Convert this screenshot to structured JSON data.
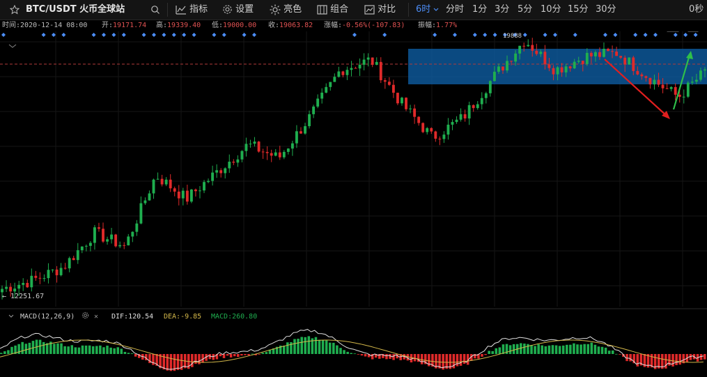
{
  "toolbar": {
    "pair": "BTC/USDT 火币全球站",
    "indicators_label": "指标",
    "settings_label": "设置",
    "theme_label": "亮色",
    "combo_label": "组合",
    "compare_label": "对比",
    "active_interval": "6时",
    "intervals": [
      "分时",
      "1分",
      "3分",
      "5分",
      "10分",
      "15分",
      "30分"
    ],
    "countdown": "0秒"
  },
  "info": {
    "time_label": "时间:",
    "time_value": "2020-12-14 08:00",
    "open_label": "开:",
    "open_value": "19171.74",
    "high_label": "高:",
    "high_value": "19339.40",
    "low_label": "低:",
    "low_value": "19000.00",
    "close_label": "收:",
    "close_value": "19063.82",
    "change_label": "涨幅:",
    "change_value": "-0.56%(-107.83)",
    "amp_label": "振幅:",
    "amp_value": "1.77%"
  },
  "price_labels": {
    "max_label": "19888",
    "min_label": "← 12251.67"
  },
  "macd": {
    "name": "MACD(12,26,9)",
    "dif": "DIF:120.54",
    "dea": "DEA:-9.85",
    "macd": "MACD:260.80"
  },
  "colors": {
    "up": "#1fae4f",
    "down": "#e02a2a",
    "accent": "#4c8df6",
    "highlight_box": "#0e5a9e",
    "arrow_down": "#e11f1f",
    "arrow_up": "#2fbf4a",
    "dif_line": "#e0e0e0",
    "dea_line": "#d4b84a"
  },
  "chart_data": {
    "type": "candlestick",
    "x_interval": "6时",
    "high": 19888,
    "low": 12251.67,
    "segments": [
      {
        "to": 12800
      },
      {
        "to": 13200
      },
      {
        "to": 14200
      },
      {
        "to": 13800
      },
      {
        "to": 15900
      },
      {
        "to": 15200
      },
      {
        "to": 16000
      },
      {
        "to": 16800
      },
      {
        "to": 16400
      },
      {
        "to": 17600
      },
      {
        "to": 19000
      },
      {
        "to": 19300
      },
      {
        "to": 18000
      },
      {
        "to": 17000
      },
      {
        "to": 17600
      },
      {
        "to": 18800
      },
      {
        "to": 19888
      },
      {
        "to": 19000
      },
      {
        "to": 19400
      },
      {
        "to": 19500
      },
      {
        "to": 18800
      },
      {
        "to": 18200
      },
      {
        "to": 19063
      }
    ]
  }
}
